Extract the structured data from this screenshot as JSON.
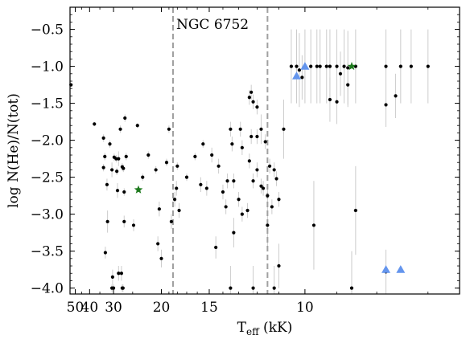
{
  "chart_data": {
    "type": "scatter",
    "title": "",
    "xlabel": {
      "main": "T",
      "sub": "eff",
      "unit": " (kK)"
    },
    "ylabel": "log N(He)/N(tot)",
    "x_scale": "reciprocal",
    "xlim": [
      55,
      6.5
    ],
    "ylim": [
      -4.08,
      -0.2
    ],
    "x_ticks": [
      50,
      40,
      30,
      20,
      15,
      10
    ],
    "y_ticks": [
      -4.0,
      -3.5,
      -3.0,
      -2.5,
      -2.0,
      -1.5,
      -1.0,
      -0.5
    ],
    "y_tick_labels": [
      "−4.0",
      "−3.5",
      "−3.0",
      "−2.5",
      "−2.0",
      "−1.5",
      "−1.0",
      "−0.5"
    ],
    "grid": false,
    "colors": {
      "points": "#000000",
      "errorbars": "#cccccc",
      "stars": "#1e7a1e",
      "triangles": "#6495ed",
      "vlines": "#a0a0a0"
    },
    "vlines": [
      {
        "x": 18.5,
        "label": "NGC 6752"
      },
      {
        "x": 11.5,
        "label": ""
      }
    ],
    "annotation": "NGC 6752",
    "series": [
      {
        "marker": "dot",
        "points": [
          {
            "x": 54.0,
            "y": -1.25,
            "err": 0.02
          },
          {
            "x": 37.5,
            "y": -1.78,
            "err": 0.03
          },
          {
            "x": 33.5,
            "y": -1.97,
            "err": 0.05
          },
          {
            "x": 33.5,
            "y": -2.37,
            "err": 0.05
          },
          {
            "x": 33.0,
            "y": -2.22,
            "err": 0.05
          },
          {
            "x": 32.8,
            "y": -3.52,
            "err": 0.08
          },
          {
            "x": 32.2,
            "y": -2.6,
            "err": 0.08
          },
          {
            "x": 32.0,
            "y": -3.1,
            "err": 0.15
          },
          {
            "x": 31.2,
            "y": -2.05,
            "err": 0.05
          },
          {
            "x": 30.5,
            "y": -2.4,
            "err": 0.1
          },
          {
            "x": 29.8,
            "y": -2.23,
            "err": 0.05
          },
          {
            "x": 29.2,
            "y": -2.25,
            "err": 0.05
          },
          {
            "x": 29.0,
            "y": -2.42,
            "err": 0.05
          },
          {
            "x": 28.8,
            "y": -2.68,
            "err": 0.1
          },
          {
            "x": 28.5,
            "y": -2.25,
            "err": 0.1
          },
          {
            "x": 28.0,
            "y": -1.85,
            "err": 0.05
          },
          {
            "x": 27.5,
            "y": -2.36,
            "err": 0.05
          },
          {
            "x": 27.2,
            "y": -2.38,
            "err": 0.05
          },
          {
            "x": 27.0,
            "y": -2.7,
            "err": 0.05
          },
          {
            "x": 26.8,
            "y": -1.7,
            "err": 0.05
          },
          {
            "x": 26.5,
            "y": -2.22,
            "err": 0.05
          },
          {
            "x": 30.5,
            "y": -4.0,
            "err": 0.05
          },
          {
            "x": 30.3,
            "y": -3.85,
            "err": 0.1
          },
          {
            "x": 30.0,
            "y": -4.0,
            "err": 0.05
          },
          {
            "x": 28.5,
            "y": -3.8,
            "err": 0.1
          },
          {
            "x": 27.7,
            "y": -3.8,
            "err": 0.1
          },
          {
            "x": 27.5,
            "y": -4.0,
            "err": 0.05
          },
          {
            "x": 27.0,
            "y": -3.1,
            "err": 0.08
          },
          {
            "x": 27.3,
            "y": -4.0,
            "err": 0.05
          },
          {
            "x": 24.8,
            "y": -3.15,
            "err": 0.08
          },
          {
            "x": 24.0,
            "y": -1.8,
            "err": 0.03
          },
          {
            "x": 23.0,
            "y": -2.5,
            "err": 0.05
          },
          {
            "x": 22.0,
            "y": -2.2,
            "err": 0.05
          },
          {
            "x": 20.8,
            "y": -2.4,
            "err": 0.05
          },
          {
            "x": 20.5,
            "y": -3.4,
            "err": 0.1
          },
          {
            "x": 20.3,
            "y": -2.93,
            "err": 0.1
          },
          {
            "x": 20.0,
            "y": -3.6,
            "err": 0.12
          },
          {
            "x": 19.3,
            "y": -2.3,
            "err": 0.05
          },
          {
            "x": 19.0,
            "y": -1.85,
            "err": 0.05
          },
          {
            "x": 18.3,
            "y": -2.8,
            "err": 0.1
          },
          {
            "x": 18.1,
            "y": -2.65,
            "err": 0.1
          },
          {
            "x": 18.7,
            "y": -3.1,
            "err": 0.1
          },
          {
            "x": 18.0,
            "y": -2.35,
            "err": 0.05
          },
          {
            "x": 17.8,
            "y": -2.95,
            "err": 0.1
          },
          {
            "x": 17.0,
            "y": -2.5,
            "err": 0.05
          },
          {
            "x": 16.2,
            "y": -2.22,
            "err": 0.05
          },
          {
            "x": 15.7,
            "y": -2.6,
            "err": 0.1
          },
          {
            "x": 15.5,
            "y": -2.05,
            "err": 0.05
          },
          {
            "x": 15.2,
            "y": -2.65,
            "err": 0.1
          },
          {
            "x": 14.8,
            "y": -2.2,
            "err": 0.1
          },
          {
            "x": 14.3,
            "y": -2.35,
            "err": 0.1
          },
          {
            "x": 14.0,
            "y": -2.7,
            "err": 0.1
          },
          {
            "x": 14.5,
            "y": -3.45,
            "err": 0.15
          },
          {
            "x": 13.8,
            "y": -2.9,
            "err": 0.1
          },
          {
            "x": 13.7,
            "y": -2.55,
            "err": 0.1
          },
          {
            "x": 13.5,
            "y": -1.85,
            "err": 0.1
          },
          {
            "x": 13.4,
            "y": -2.05,
            "err": 0.1
          },
          {
            "x": 13.3,
            "y": -2.55,
            "err": 0.1
          },
          {
            "x": 13.0,
            "y": -2.8,
            "err": 0.1
          },
          {
            "x": 12.9,
            "y": -1.85,
            "err": 0.1
          },
          {
            "x": 12.8,
            "y": -2.1,
            "err": 0.1
          },
          {
            "x": 12.5,
            "y": -2.95,
            "err": 0.1
          },
          {
            "x": 12.4,
            "y": -2.28,
            "err": 0.1
          },
          {
            "x": 12.3,
            "y": -1.95,
            "err": 0.1
          },
          {
            "x": 12.2,
            "y": -2.55,
            "err": 0.1
          },
          {
            "x": 12.0,
            "y": -2.4,
            "err": 0.1
          },
          {
            "x": 12.0,
            "y": -1.95,
            "err": 0.1
          },
          {
            "x": 11.8,
            "y": -2.62,
            "err": 0.1
          },
          {
            "x": 11.7,
            "y": -2.65,
            "err": 0.1
          },
          {
            "x": 11.6,
            "y": -2.02,
            "err": 0.1
          },
          {
            "x": 11.5,
            "y": -2.75,
            "err": 0.1
          },
          {
            "x": 11.4,
            "y": -2.35,
            "err": 0.1
          },
          {
            "x": 11.3,
            "y": -2.9,
            "err": 0.1
          },
          {
            "x": 11.2,
            "y": -2.4,
            "err": 0.1
          },
          {
            "x": 11.1,
            "y": -2.52,
            "err": 0.1
          },
          {
            "x": 11.0,
            "y": -2.8,
            "err": 0.1
          },
          {
            "x": 12.4,
            "y": -1.42,
            "err": 0.1
          },
          {
            "x": 12.2,
            "y": -1.48,
            "err": 0.1
          },
          {
            "x": 12.0,
            "y": -1.55,
            "err": 0.1
          },
          {
            "x": 11.8,
            "y": -1.85,
            "err": 0.2
          },
          {
            "x": 12.3,
            "y": -1.35,
            "err": 0.1
          },
          {
            "x": 12.8,
            "y": -3.0,
            "err": 0.1
          },
          {
            "x": 13.3,
            "y": -3.25,
            "err": 0.2
          },
          {
            "x": 11.5,
            "y": -3.15,
            "err": 0.3
          },
          {
            "x": 11.0,
            "y": -3.7,
            "err": 0.3
          },
          {
            "x": 13.5,
            "y": -4.0,
            "err": 0.3
          },
          {
            "x": 12.2,
            "y": -4.0,
            "err": 0.3
          },
          {
            "x": 11.2,
            "y": -4.0,
            "err": 0.3
          },
          {
            "x": 10.8,
            "y": -1.85,
            "err": 0.4
          },
          {
            "x": 10.5,
            "y": -1.0,
            "err": 0.5
          },
          {
            "x": 10.3,
            "y": -1.0,
            "err": 0.5
          },
          {
            "x": 10.2,
            "y": -1.05,
            "err": 0.5
          },
          {
            "x": 10.0,
            "y": -1.0,
            "err": 0.5
          },
          {
            "x": 9.8,
            "y": -1.0,
            "err": 0.5
          },
          {
            "x": 9.6,
            "y": -1.0,
            "err": 0.5
          },
          {
            "x": 9.5,
            "y": -1.0,
            "err": 0.5
          },
          {
            "x": 9.3,
            "y": -1.0,
            "err": 0.5
          },
          {
            "x": 9.2,
            "y": -1.0,
            "err": 0.5
          },
          {
            "x": 9.0,
            "y": -1.0,
            "err": 0.5
          },
          {
            "x": 8.8,
            "y": -1.0,
            "err": 0.5
          },
          {
            "x": 8.7,
            "y": -1.02,
            "err": 0.5
          },
          {
            "x": 8.5,
            "y": -1.0,
            "err": 0.5
          },
          {
            "x": 7.8,
            "y": -1.0,
            "err": 0.5
          },
          {
            "x": 7.5,
            "y": -1.0,
            "err": 0.5
          },
          {
            "x": 7.3,
            "y": -1.0,
            "err": 0.5
          },
          {
            "x": 7.0,
            "y": -1.0,
            "err": 0.5
          },
          {
            "x": 10.1,
            "y": -1.15,
            "err": 0.3
          },
          {
            "x": 9.2,
            "y": -1.45,
            "err": 0.3
          },
          {
            "x": 9.0,
            "y": -1.48,
            "err": 0.3
          },
          {
            "x": 8.9,
            "y": -1.1,
            "err": 0.3
          },
          {
            "x": 8.7,
            "y": -1.25,
            "err": 0.3
          },
          {
            "x": 8.5,
            "y": -2.95,
            "err": 0.6
          },
          {
            "x": 7.8,
            "y": -1.52,
            "err": 0.3
          },
          {
            "x": 7.6,
            "y": -1.4,
            "err": 0.3
          },
          {
            "x": 7.8,
            "y": -3.78,
            "err": 0.3
          },
          {
            "x": 9.7,
            "y": -3.15,
            "err": 0.6
          },
          {
            "x": 8.6,
            "y": -4.0,
            "err": 0.5
          }
        ]
      },
      {
        "marker": "star",
        "points": [
          {
            "x": 23.8,
            "y": -2.67
          },
          {
            "x": 8.6,
            "y": -1.0
          }
        ]
      },
      {
        "marker": "triangle",
        "points": [
          {
            "x": 10.3,
            "y": -1.13
          },
          {
            "x": 10.0,
            "y": -1.0
          },
          {
            "x": 7.8,
            "y": -3.75
          },
          {
            "x": 7.5,
            "y": -3.75
          }
        ]
      }
    ]
  }
}
